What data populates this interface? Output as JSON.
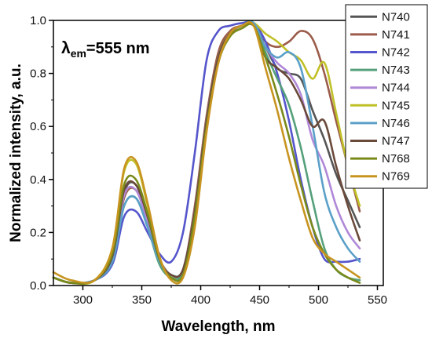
{
  "chart_data": {
    "type": "line",
    "title": "",
    "annotation": {
      "lambda": "λ",
      "sub": "em",
      "value": "=555 nm"
    },
    "xlabel": "Wavelength, nm",
    "ylabel": "Normalized intensity, a.u.",
    "xlim": [
      275,
      555
    ],
    "ylim": [
      0,
      1.0
    ],
    "xticks": [
      300,
      350,
      400,
      450,
      500,
      550
    ],
    "yticks": [
      0.0,
      0.2,
      0.4,
      0.6,
      0.8,
      1.0
    ],
    "ytick_labels": [
      "0.0",
      "0.2",
      "0.4",
      "0.6",
      "0.8",
      "1.0"
    ],
    "grid": false,
    "legend_position": "top-right",
    "x": [
      275,
      290,
      310,
      325,
      335,
      345,
      355,
      365,
      375,
      385,
      395,
      405,
      415,
      425,
      435,
      445,
      455,
      465,
      475,
      485,
      495,
      505,
      515,
      525,
      535
    ],
    "series": [
      {
        "name": "N740",
        "color": "#555555",
        "values": [
          0.03,
          0.01,
          0.02,
          0.1,
          0.35,
          0.38,
          0.25,
          0.1,
          0.04,
          0.06,
          0.28,
          0.62,
          0.86,
          0.95,
          0.98,
          0.98,
          0.9,
          0.82,
          0.8,
          0.78,
          0.66,
          0.55,
          0.42,
          0.32,
          0.22
        ]
      },
      {
        "name": "N741",
        "color": "#9b5c4a",
        "values": [
          0.03,
          0.01,
          0.02,
          0.1,
          0.33,
          0.36,
          0.24,
          0.1,
          0.04,
          0.06,
          0.3,
          0.64,
          0.88,
          0.96,
          0.98,
          0.99,
          0.92,
          0.9,
          0.92,
          0.96,
          0.93,
          0.8,
          0.62,
          0.45,
          0.28
        ]
      },
      {
        "name": "N742",
        "color": "#5555cc",
        "values": [
          0.03,
          0.01,
          0.02,
          0.08,
          0.26,
          0.28,
          0.2,
          0.12,
          0.09,
          0.2,
          0.5,
          0.85,
          0.96,
          0.98,
          0.99,
          0.99,
          0.92,
          0.8,
          0.62,
          0.4,
          0.22,
          0.1,
          0.09,
          0.09,
          0.1
        ]
      },
      {
        "name": "N743",
        "color": "#55a07a",
        "values": [
          0.03,
          0.01,
          0.02,
          0.09,
          0.3,
          0.33,
          0.22,
          0.08,
          0.03,
          0.05,
          0.26,
          0.6,
          0.86,
          0.95,
          0.98,
          0.99,
          0.88,
          0.78,
          0.68,
          0.52,
          0.32,
          0.14,
          0.06,
          0.03,
          0.02
        ]
      },
      {
        "name": "N744",
        "color": "#b088d8",
        "values": [
          0.03,
          0.01,
          0.02,
          0.1,
          0.34,
          0.36,
          0.24,
          0.1,
          0.04,
          0.06,
          0.28,
          0.62,
          0.86,
          0.95,
          0.98,
          0.98,
          0.9,
          0.84,
          0.8,
          0.72,
          0.55,
          0.45,
          0.3,
          0.2,
          0.14
        ]
      },
      {
        "name": "N745",
        "color": "#c0c028",
        "values": [
          0.03,
          0.01,
          0.02,
          0.14,
          0.43,
          0.46,
          0.3,
          0.1,
          0.03,
          0.04,
          0.26,
          0.6,
          0.86,
          0.95,
          0.98,
          0.99,
          0.95,
          0.92,
          0.88,
          0.85,
          0.78,
          0.84,
          0.65,
          0.45,
          0.3
        ]
      },
      {
        "name": "N746",
        "color": "#5aa0c8",
        "values": [
          0.03,
          0.01,
          0.02,
          0.09,
          0.3,
          0.33,
          0.22,
          0.09,
          0.04,
          0.06,
          0.28,
          0.62,
          0.86,
          0.95,
          0.98,
          0.99,
          0.9,
          0.86,
          0.88,
          0.82,
          0.6,
          0.35,
          0.22,
          0.14,
          0.09
        ]
      },
      {
        "name": "N747",
        "color": "#6a4a3a",
        "values": [
          0.03,
          0.01,
          0.02,
          0.11,
          0.36,
          0.38,
          0.26,
          0.1,
          0.04,
          0.06,
          0.28,
          0.62,
          0.86,
          0.95,
          0.98,
          0.98,
          0.86,
          0.82,
          0.78,
          0.7,
          0.6,
          0.62,
          0.45,
          0.3,
          0.17
        ]
      },
      {
        "name": "N768",
        "color": "#7a8a1a",
        "values": [
          0.03,
          0.01,
          0.02,
          0.12,
          0.38,
          0.4,
          0.27,
          0.1,
          0.03,
          0.04,
          0.26,
          0.6,
          0.84,
          0.94,
          0.97,
          0.98,
          0.86,
          0.72,
          0.56,
          0.38,
          0.22,
          0.12,
          0.06,
          0.03,
          0.01
        ]
      },
      {
        "name": "N769",
        "color": "#c89420",
        "values": [
          0.05,
          0.02,
          0.02,
          0.14,
          0.44,
          0.47,
          0.31,
          0.11,
          0.02,
          0.03,
          0.22,
          0.58,
          0.84,
          0.95,
          0.98,
          0.98,
          0.82,
          0.66,
          0.48,
          0.32,
          0.18,
          0.12,
          0.09,
          0.06,
          0.03
        ]
      }
    ]
  }
}
